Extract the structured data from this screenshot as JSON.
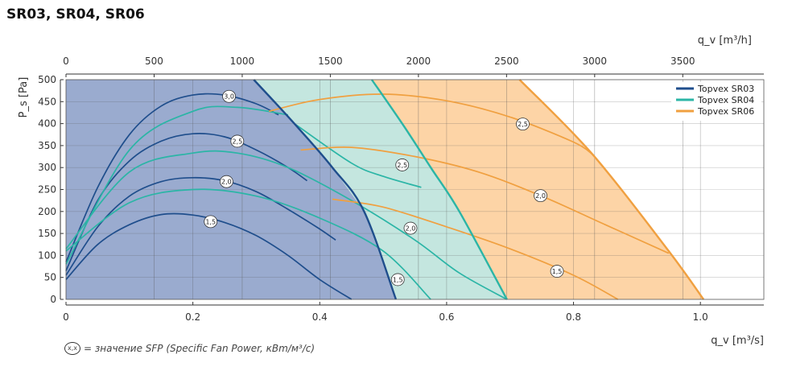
{
  "title": "SR03, SR04, SR06",
  "note": {
    "symbol": "x,x",
    "text": "= значение SFP (Specific Fan Power, кВm/м³/с)"
  },
  "chart_data": {
    "type": "line",
    "title": "SR03, SR04, SR06",
    "xlabel": "q_v [m³/s]",
    "x2label": "q_v [m³/h]",
    "ylabel": "P_s [Pa]",
    "xlim": [
      0,
      1.1
    ],
    "x2lim": [
      0,
      3960
    ],
    "ylim": [
      0,
      500
    ],
    "x_ticks": [
      "0",
      "0.2",
      "0.4",
      "0.6",
      "0.8",
      "1.0"
    ],
    "x2_ticks": [
      "0",
      "500",
      "1000",
      "1500",
      "2000",
      "2500",
      "3000",
      "3500"
    ],
    "y_ticks": [
      "0",
      "50",
      "100",
      "150",
      "200",
      "250",
      "300",
      "350",
      "400",
      "450",
      "500"
    ],
    "grid": true,
    "legend_position": "top-right",
    "colors": {
      "SR03": "#1f4e8c",
      "SR04": "#2bb5a6",
      "SR06": "#f0a040",
      "SR03_fill": "#9aabcf",
      "SR04_fill": "#c4e6df",
      "SR06_fill": "#fdd4a6"
    },
    "series": [
      {
        "name": "Topvex SR03",
        "color": "#1f4e8c",
        "boundary": [
          [
            0.296,
            500
          ],
          [
            0.36,
            400
          ],
          [
            0.42,
            300
          ],
          [
            0.47,
            200
          ],
          [
            0.52,
            0
          ]
        ],
        "curves": [
          {
            "sfp": "3,0",
            "points": [
              [
                0,
                85
              ],
              [
                0.05,
                255
              ],
              [
                0.1,
                375
              ],
              [
                0.15,
                440
              ],
              [
                0.2,
                465
              ],
              [
                0.25,
                465
              ],
              [
                0.3,
                445
              ],
              [
                0.335,
                420
              ]
            ]
          },
          {
            "sfp": "2,5",
            "points": [
              [
                0,
                65
              ],
              [
                0.05,
                225
              ],
              [
                0.1,
                315
              ],
              [
                0.15,
                360
              ],
              [
                0.2,
                377
              ],
              [
                0.25,
                370
              ],
              [
                0.3,
                340
              ],
              [
                0.35,
                300
              ],
              [
                0.38,
                270
              ]
            ]
          },
          {
            "sfp": "2,0",
            "points": [
              [
                0,
                55
              ],
              [
                0.05,
                165
              ],
              [
                0.1,
                235
              ],
              [
                0.15,
                268
              ],
              [
                0.2,
                277
              ],
              [
                0.25,
                270
              ],
              [
                0.3,
                245
              ],
              [
                0.35,
                205
              ],
              [
                0.4,
                160
              ],
              [
                0.425,
                135
              ]
            ]
          },
          {
            "sfp": "1,5",
            "points": [
              [
                0,
                45
              ],
              [
                0.05,
                125
              ],
              [
                0.1,
                170
              ],
              [
                0.15,
                193
              ],
              [
                0.2,
                192
              ],
              [
                0.25,
                175
              ],
              [
                0.3,
                145
              ],
              [
                0.35,
                100
              ],
              [
                0.4,
                45
              ],
              [
                0.45,
                0
              ]
            ]
          }
        ]
      },
      {
        "name": "Topvex SR04",
        "color": "#2bb5a6",
        "boundary": [
          [
            0.482,
            500
          ],
          [
            0.53,
            400
          ],
          [
            0.575,
            300
          ],
          [
            0.62,
            200
          ],
          [
            0.695,
            0
          ]
        ],
        "curves": [
          {
            "sfp": "3,0",
            "points": [
              [
                0,
                80
              ],
              [
                0.1,
                340
              ],
              [
                0.2,
                428
              ],
              [
                0.27,
                437
              ],
              [
                0.35,
                420
              ]
            ]
          },
          {
            "sfp": "2,5",
            "points": [
              [
                0,
                115
              ],
              [
                0.1,
                290
              ],
              [
                0.2,
                333
              ],
              [
                0.27,
                333
              ],
              [
                0.35,
                300
              ],
              [
                0.45,
                225
              ],
              [
                0.55,
                135
              ],
              [
                0.62,
                60
              ],
              [
                0.695,
                0
              ]
            ]
          },
          {
            "sfp": "2,0",
            "points": [
              [
                0,
                110
              ],
              [
                0.1,
                220
              ],
              [
                0.2,
                250
              ],
              [
                0.3,
                235
              ],
              [
                0.4,
                185
              ],
              [
                0.5,
                110
              ],
              [
                0.575,
                0
              ]
            ]
          },
          {
            "sfp": "1,5",
            "points": [
              [
                0.36,
                400
              ],
              [
                0.45,
                310
              ],
              [
                0.5,
                280
              ],
              [
                0.56,
                255
              ]
            ]
          }
        ]
      },
      {
        "name": "Topvex SR06",
        "color": "#f0a040",
        "boundary": [
          [
            0.715,
            500
          ],
          [
            0.83,
            330
          ],
          [
            0.95,
            110
          ],
          [
            1.005,
            0
          ]
        ],
        "curves": [
          {
            "sfp": "2,5",
            "points": [
              [
                0.32,
                428
              ],
              [
                0.4,
                455
              ],
              [
                0.5,
                467
              ],
              [
                0.6,
                452
              ],
              [
                0.7,
                415
              ],
              [
                0.8,
                358
              ],
              [
                0.83,
                330
              ]
            ]
          },
          {
            "sfp": "2,0",
            "points": [
              [
                0.37,
                340
              ],
              [
                0.45,
                346
              ],
              [
                0.55,
                325
              ],
              [
                0.65,
                290
              ],
              [
                0.75,
                235
              ],
              [
                0.85,
                170
              ],
              [
                0.95,
                105
              ]
            ]
          },
          {
            "sfp": "1,5",
            "points": [
              [
                0.42,
                228
              ],
              [
                0.5,
                210
              ],
              [
                0.6,
                165
              ],
              [
                0.7,
                115
              ],
              [
                0.8,
                55
              ],
              [
                0.87,
                0
              ]
            ]
          }
        ]
      }
    ],
    "sfp_labels": [
      {
        "text": "3,0",
        "x": 0.257,
        "y": 462
      },
      {
        "text": "2,5",
        "x": 0.27,
        "y": 360
      },
      {
        "text": "2,0",
        "x": 0.253,
        "y": 268
      },
      {
        "text": "1,5",
        "x": 0.228,
        "y": 177
      },
      {
        "text": "2,5",
        "x": 0.53,
        "y": 306
      },
      {
        "text": "2,0",
        "x": 0.543,
        "y": 162
      },
      {
        "text": "1,5",
        "x": 0.523,
        "y": 45
      },
      {
        "text": "2,5",
        "x": 0.72,
        "y": 399
      },
      {
        "text": "2,0",
        "x": 0.748,
        "y": 236
      },
      {
        "text": "1,5",
        "x": 0.774,
        "y": 64
      }
    ]
  }
}
